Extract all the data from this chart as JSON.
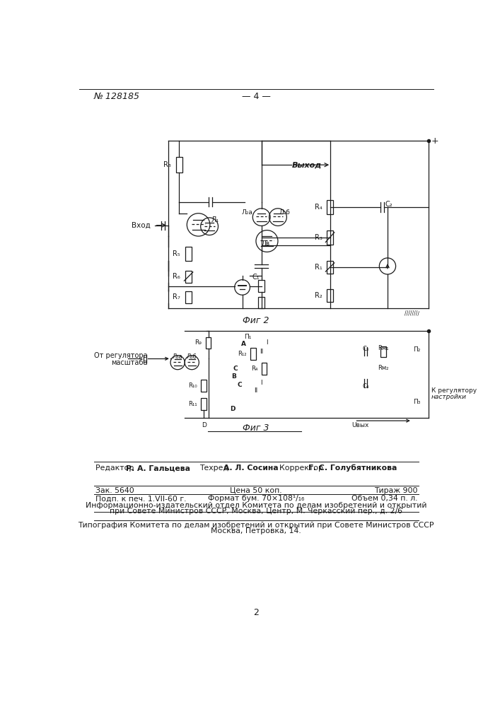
{
  "page_color": "#ffffff",
  "color": "#1a1a1a",
  "header_no": "№ 128185",
  "header_center": "— 4 —",
  "fig2_caption": "Фиг 2",
  "fig3_caption": "Фиг 3",
  "footer_ed_label": "Редактор",
  "footer_ed_name": "Р. А. Гальцева",
  "footer_tech_label": "Техред",
  "footer_tech_name": "А. Л. Сосина",
  "footer_corr_label": "Корректор",
  "footer_corr_name": "Г. С. Голубятникова",
  "footer_zak": "Зак. 5640",
  "footer_cena": "Цена 50 коп.",
  "footer_tirazh": "Тираж 900",
  "footer_podp": "Подп. к печ. 1.VII-60 г.",
  "footer_format": "Формат бум. 70×108¹/₁₆",
  "footer_obem": "Объем 0,34 п. л.",
  "footer_info1": "Информационно-издательский отдел Комитета по делам изобретений и открытий",
  "footer_info2": "при Совете Министров СССР, Москва, Центр, М. Черкасский пер., д. 2/6",
  "footer_tip1": "Типография Комитета по делам изобретений и открытий при Совете Министров СССР",
  "footer_tip2": "Москва, Петровка, 14.",
  "page_num": "2"
}
